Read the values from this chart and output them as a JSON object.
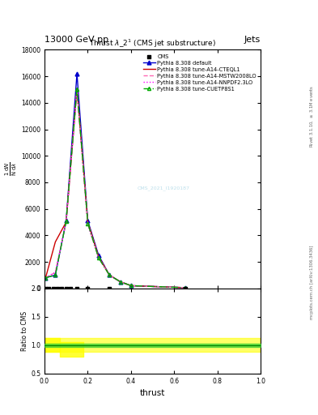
{
  "title_top": "13000 GeV pp",
  "title_top_right": "Jets",
  "plot_title": "Thrust $\\lambda\\_2^1$ (CMS jet substructure)",
  "xlabel": "thrust",
  "ylabel_ratio": "Ratio to CMS",
  "right_label_top": "Rivet 3.1.10, $\\geq$ 3.1M events",
  "right_label_bottom": "mcplots.cern.ch [arXiv:1306.3436]",
  "watermark": "CMS_2021_I1920187",
  "cms_data_x": [
    0.005,
    0.02,
    0.04,
    0.06,
    0.08,
    0.1,
    0.12,
    0.15,
    0.2,
    0.3,
    0.65
  ],
  "cms_data_y": [
    0,
    0,
    0,
    0,
    0,
    0,
    0,
    0,
    0,
    0,
    0
  ],
  "pythia_default_x": [
    0.005,
    0.05,
    0.1,
    0.15,
    0.2,
    0.25,
    0.3,
    0.35,
    0.4,
    0.65
  ],
  "pythia_default_y": [
    800,
    1000,
    5100,
    16200,
    5100,
    2500,
    1000,
    500,
    200,
    50
  ],
  "pythia_cteql1_x": [
    0.005,
    0.05,
    0.1,
    0.15,
    0.2,
    0.25,
    0.3,
    0.35,
    0.4,
    0.65
  ],
  "pythia_cteql1_y": [
    800,
    3500,
    5000,
    15100,
    5000,
    2400,
    1000,
    500,
    200,
    50
  ],
  "pythia_mstw_x": [
    0.005,
    0.05,
    0.1,
    0.15,
    0.2,
    0.25,
    0.3,
    0.35,
    0.4,
    0.65
  ],
  "pythia_mstw_y": [
    800,
    1200,
    5000,
    15000,
    4900,
    2300,
    1000,
    500,
    200,
    50
  ],
  "pythia_nnpdf_x": [
    0.005,
    0.05,
    0.1,
    0.15,
    0.2,
    0.25,
    0.3,
    0.35,
    0.4,
    0.65
  ],
  "pythia_nnpdf_y": [
    800,
    1200,
    5000,
    15000,
    4800,
    2300,
    1000,
    500,
    200,
    50
  ],
  "pythia_cuetp_x": [
    0.005,
    0.05,
    0.1,
    0.15,
    0.2,
    0.25,
    0.3,
    0.35,
    0.4,
    0.65
  ],
  "pythia_cuetp_y": [
    800,
    1000,
    5050,
    15050,
    4900,
    2300,
    1000,
    500,
    200,
    50
  ],
  "colors": {
    "cms": "#000000",
    "default": "#0000cc",
    "cteql1": "#cc0000",
    "mstw": "#ff69b4",
    "nnpdf": "#ff00ff",
    "cuetp": "#00aa00"
  },
  "ylim_main": [
    0,
    18000
  ],
  "ylim_ratio": [
    0.5,
    2.0
  ],
  "xlim": [
    0,
    1
  ],
  "yticks_main": [
    0,
    2000,
    4000,
    6000,
    8000,
    10000,
    12000,
    14000,
    16000,
    18000
  ],
  "yticks_ratio": [
    0.5,
    1.0,
    1.5,
    2.0
  ]
}
